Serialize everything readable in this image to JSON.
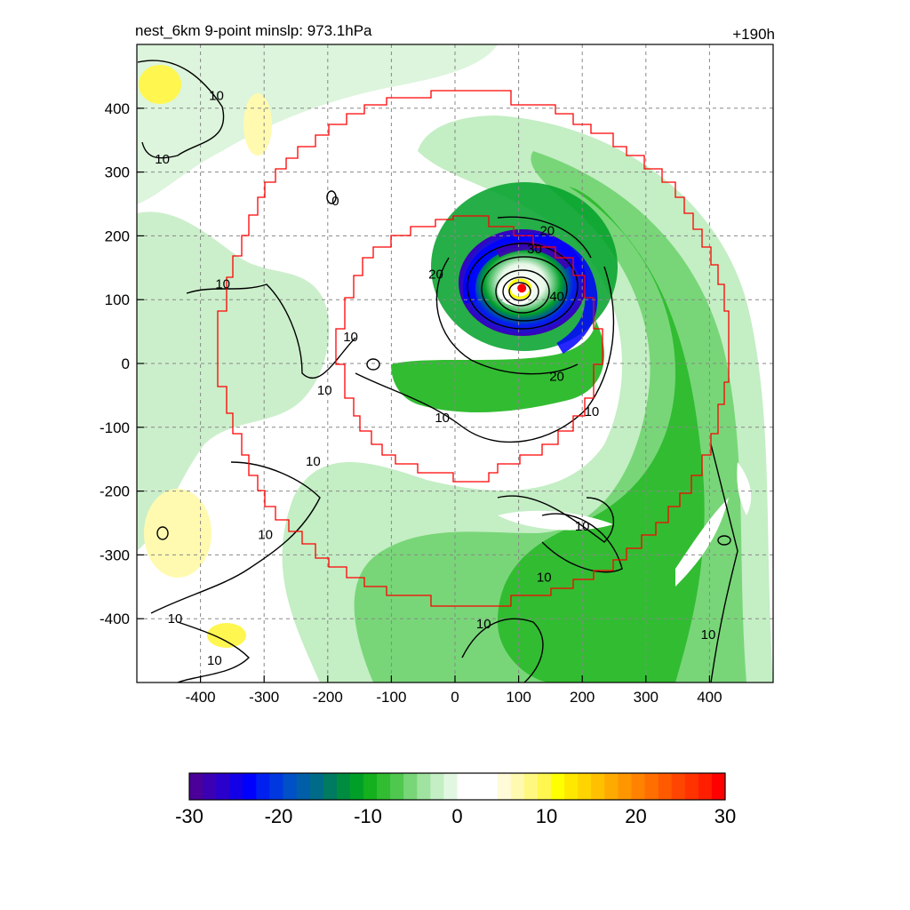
{
  "chart_data": {
    "type": "heatmap",
    "title_left": "nest_6km  9-point minslp: 973.1hPa",
    "title_right": "+190h",
    "xlabel": "",
    "ylabel": "",
    "xlim": [
      -500,
      500
    ],
    "ylim": [
      -500,
      500
    ],
    "x_ticks": [
      -400,
      -300,
      -200,
      -100,
      0,
      100,
      200,
      300,
      400
    ],
    "y_ticks": [
      400,
      300,
      200,
      100,
      0,
      -100,
      -200,
      -300,
      -400
    ],
    "grid": true,
    "center_marker": {
      "x": 105,
      "y": 118
    },
    "colorbar": {
      "min": -30,
      "max": 30,
      "tick_labels": [
        -30,
        -20,
        -10,
        0,
        10,
        20,
        30
      ],
      "colors": [
        "#4b0099",
        "#3c00b4",
        "#2a00cc",
        "#1400e6",
        "#0000ff",
        "#0020f0",
        "#0038e0",
        "#0050c8",
        "#005fa8",
        "#006b88",
        "#007a60",
        "#008c40",
        "#00a028",
        "#14b01e",
        "#32bc32",
        "#50c850",
        "#78d678",
        "#a0e2a0",
        "#c4eec4",
        "#e2f7e2",
        "#ffffff",
        "#ffffff",
        "#ffffff",
        "#fffbd8",
        "#fffab0",
        "#fff880",
        "#fff650",
        "#ffff00",
        "#ffe800",
        "#ffd400",
        "#ffc000",
        "#ffaa00",
        "#ff9600",
        "#ff8200",
        "#ff6e00",
        "#ff5a00",
        "#ff4600",
        "#ff3200",
        "#ff1e00",
        "#ff0000"
      ]
    },
    "contour_labels": [
      {
        "text": "10",
        "x": -375,
        "y": 420
      },
      {
        "text": "10",
        "x": -460,
        "y": 320
      },
      {
        "text": "0",
        "x": -188,
        "y": 255
      },
      {
        "text": "10",
        "x": -365,
        "y": 125
      },
      {
        "text": "10",
        "x": -164,
        "y": 42
      },
      {
        "text": "10",
        "x": -205,
        "y": -42
      },
      {
        "text": "10",
        "x": -223,
        "y": -153
      },
      {
        "text": "10",
        "x": -298,
        "y": -268
      },
      {
        "text": "10",
        "x": -440,
        "y": -400
      },
      {
        "text": "10",
        "x": -378,
        "y": -465
      },
      {
        "text": "20",
        "x": -30,
        "y": 140
      },
      {
        "text": "20",
        "x": 145,
        "y": 208
      },
      {
        "text": "30",
        "x": 125,
        "y": 180
      },
      {
        "text": "40",
        "x": 160,
        "y": 105
      },
      {
        "text": "20",
        "x": 160,
        "y": -20
      },
      {
        "text": "10",
        "x": -20,
        "y": -85
      },
      {
        "text": "10",
        "x": 215,
        "y": -75
      },
      {
        "text": "10",
        "x": 200,
        "y": -255
      },
      {
        "text": "10",
        "x": 140,
        "y": -335
      },
      {
        "text": "10",
        "x": 45,
        "y": -408
      },
      {
        "text": "10",
        "x": 398,
        "y": -425
      }
    ]
  }
}
